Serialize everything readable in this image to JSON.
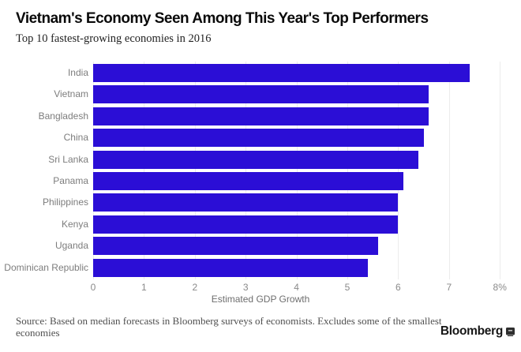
{
  "header": {
    "title": "Vietnam's Economy Seen Among This Year's Top Performers",
    "subtitle": "Top 10 fastest-growing economies in 2016"
  },
  "chart_data": {
    "type": "bar",
    "orientation": "horizontal",
    "categories": [
      "India",
      "Vietnam",
      "Bangladesh",
      "China",
      "Sri Lanka",
      "Panama",
      "Philippines",
      "Kenya",
      "Uganda",
      "Dominican Republic"
    ],
    "values": [
      7.4,
      6.6,
      6.6,
      6.5,
      6.4,
      6.1,
      6.0,
      6.0,
      5.6,
      5.4
    ],
    "xlabel": "Estimated GDP Growth",
    "xlim": [
      0,
      8
    ],
    "x_ticks": [
      "0",
      "1",
      "2",
      "3",
      "4",
      "5",
      "6",
      "7",
      "8%"
    ],
    "grid": "vertical-light",
    "legend": "none",
    "bar_color": "#2b0ed6",
    "gridline_color": "#ececec"
  },
  "footer": {
    "source_lines": [
      "Source: Based on median forecasts in Bloomberg surveys of economists. Excludes some of the smallest",
      "economies"
    ],
    "brand": "Bloomberg",
    "brand_icon": "bloomberg-terminal-icon"
  }
}
